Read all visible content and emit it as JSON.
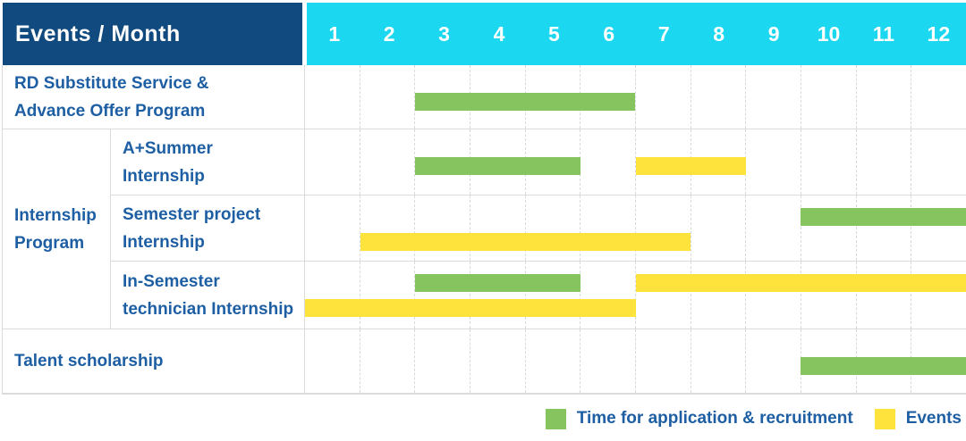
{
  "colors": {
    "header_bg": "#114a7e",
    "months_bg": "#1bd7ef",
    "bar_green": "#85c45f",
    "bar_yellow": "#ffe33d",
    "label_text": "#1e5fa4",
    "grid_line": "#dbdbdb"
  },
  "chart_data": {
    "type": "gantt",
    "title": "Events / Month",
    "x_categories": [
      "1",
      "2",
      "3",
      "4",
      "5",
      "6",
      "7",
      "8",
      "9",
      "10",
      "11",
      "12"
    ],
    "x_range": [
      1,
      12
    ],
    "grid": "dashed-monthly",
    "legend_position": "bottom-right",
    "legend": [
      {
        "color_key": "bar_green",
        "color_class": "green",
        "label": "Time for application & recruitment"
      },
      {
        "color_key": "bar_yellow",
        "color_class": "yellow",
        "label": "Events"
      }
    ],
    "rows": [
      {
        "kind": "simple",
        "key": "rd-substitute-service-advance-offer-program",
        "label_lines": [
          "RD Substitute Service &",
          "Advance Offer Program"
        ],
        "bars": [
          {
            "color": "green",
            "start_month": 3,
            "end_month": 6,
            "lane": "middle"
          }
        ]
      },
      {
        "kind": "group",
        "key": "internship-program",
        "label_lines": [
          "Internship",
          "Program"
        ],
        "children": [
          {
            "key": "a-plus-summer-internship",
            "label_lines": [
              "A+Summer",
              "Internship"
            ],
            "bars": [
              {
                "color": "green",
                "start_month": 3,
                "end_month": 5,
                "lane": "middle"
              },
              {
                "color": "yellow",
                "start_month": 7,
                "end_month": 8,
                "lane": "middle"
              }
            ]
          },
          {
            "key": "semester-project-internship",
            "label_lines": [
              "Semester project",
              "Internship"
            ],
            "bars": [
              {
                "color": "green",
                "start_month": 10,
                "end_month": 12,
                "lane": "top"
              },
              {
                "color": "yellow",
                "start_month": 2,
                "end_month": 7,
                "lane": "bottom"
              }
            ]
          },
          {
            "key": "in-semester-technician-internship",
            "label_lines": [
              "In-Semester",
              "technician Internship"
            ],
            "bars": [
              {
                "color": "green",
                "start_month": 3,
                "end_month": 5,
                "lane": "top"
              },
              {
                "color": "yellow",
                "start_month": 7,
                "end_month": 12,
                "lane": "top"
              },
              {
                "color": "yellow",
                "start_month": 1,
                "end_month": 6,
                "lane": "bottom"
              }
            ]
          }
        ]
      },
      {
        "kind": "simple",
        "key": "talent-scholarship",
        "label_lines": [
          "Talent scholarship"
        ],
        "bars": [
          {
            "color": "green",
            "start_month": 10,
            "end_month": 12,
            "lane": "middle"
          }
        ]
      }
    ]
  }
}
